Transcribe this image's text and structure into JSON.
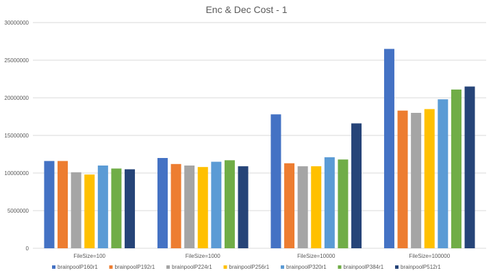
{
  "chart_data": {
    "type": "bar",
    "title": "Enc & Dec Cost - 1",
    "xlabel": "",
    "ylabel": "",
    "categories": [
      "FileSize=100",
      "FileSize=1000",
      "FileSize=10000",
      "FileSize=100000"
    ],
    "ylim": [
      0,
      30000000
    ],
    "yticks": [
      0,
      5000000,
      10000000,
      15000000,
      20000000,
      25000000,
      30000000
    ],
    "ytick_labels": [
      "0",
      "5000000",
      "10000000",
      "15000000",
      "20000000",
      "25000000",
      "30000000"
    ],
    "grid": true,
    "legend_position": "bottom",
    "series": [
      {
        "name": "brainpoolP160r1",
        "color": "#4472c4",
        "values": [
          11600000,
          12000000,
          17800000,
          26500000
        ]
      },
      {
        "name": "brainpoolP192r1",
        "color": "#ed7d31",
        "values": [
          11600000,
          11200000,
          11300000,
          18300000
        ]
      },
      {
        "name": "brainpoolP224r1",
        "color": "#a5a5a5",
        "values": [
          10100000,
          11000000,
          10900000,
          18000000
        ]
      },
      {
        "name": "brainpoolP256r1",
        "color": "#ffc000",
        "values": [
          9800000,
          10800000,
          10900000,
          18500000
        ]
      },
      {
        "name": "brainpoolP320r1",
        "color": "#5b9bd5",
        "values": [
          11000000,
          11500000,
          12100000,
          19800000
        ]
      },
      {
        "name": "brainpoolP384r1",
        "color": "#70ad47",
        "values": [
          10600000,
          11700000,
          11800000,
          21100000
        ]
      },
      {
        "name": "brainpoolP512r1",
        "color": "#264478",
        "values": [
          10500000,
          10900000,
          16600000,
          21500000
        ]
      }
    ]
  }
}
